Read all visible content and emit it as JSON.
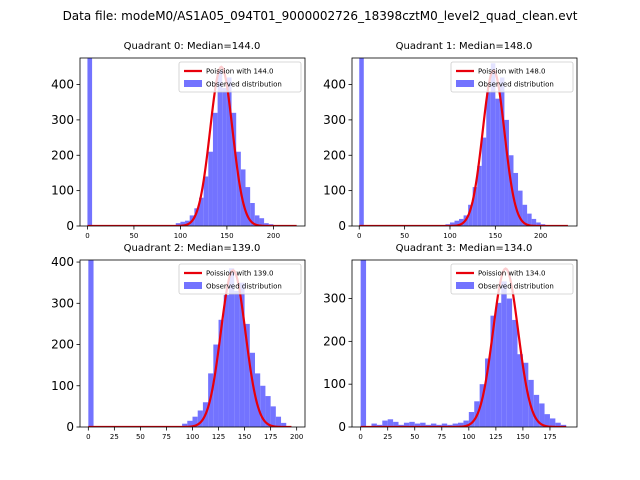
{
  "figure": {
    "suptitle": "Data file: modeM0/AS1A05_094T01_9000002726_18398cztM0_level2_quad_clean.evt"
  },
  "colors": {
    "hist": "#6b6bff",
    "hist_opacity": 0.95,
    "curve": "#e8000b",
    "axes": "#000000"
  },
  "chart_data": [
    {
      "type": "bar",
      "title": "Quadrant 0: Median=144.0",
      "median": 144.0,
      "xlim": [
        -8,
        234
      ],
      "ylim": [
        0,
        475
      ],
      "xticks": [
        0,
        50,
        100,
        150,
        200
      ],
      "yticks": [
        0,
        100,
        200,
        300,
        400
      ],
      "bin_width": 5,
      "legend": [
        "Poission with 144.0",
        "Observed distribution"
      ],
      "curve": {
        "label": "Poission with 144.0",
        "mean": 144.0,
        "peak": 450,
        "sigma": 12.0,
        "x_range": [
          0,
          225
        ]
      },
      "bins": [
        {
          "x": 0,
          "y": 475
        },
        {
          "x": 95,
          "y": 8
        },
        {
          "x": 100,
          "y": 12
        },
        {
          "x": 105,
          "y": 15
        },
        {
          "x": 110,
          "y": 30
        },
        {
          "x": 115,
          "y": 50
        },
        {
          "x": 120,
          "y": 80
        },
        {
          "x": 125,
          "y": 140
        },
        {
          "x": 130,
          "y": 210
        },
        {
          "x": 135,
          "y": 320
        },
        {
          "x": 140,
          "y": 440
        },
        {
          "x": 145,
          "y": 390
        },
        {
          "x": 150,
          "y": 420
        },
        {
          "x": 155,
          "y": 320
        },
        {
          "x": 160,
          "y": 210
        },
        {
          "x": 165,
          "y": 160
        },
        {
          "x": 170,
          "y": 110
        },
        {
          "x": 175,
          "y": 65
        },
        {
          "x": 180,
          "y": 30
        },
        {
          "x": 185,
          "y": 22
        },
        {
          "x": 190,
          "y": 8
        },
        {
          "x": 195,
          "y": 5
        }
      ]
    },
    {
      "type": "bar",
      "title": "Quadrant 1: Median=148.0",
      "median": 148.0,
      "xlim": [
        -8,
        240
      ],
      "ylim": [
        0,
        475
      ],
      "xticks": [
        0,
        50,
        100,
        150,
        200
      ],
      "yticks": [
        0,
        100,
        200,
        300,
        400
      ],
      "bin_width": 5,
      "legend": [
        "Poission with 148.0",
        "Observed distribution"
      ],
      "curve": {
        "label": "Poission with 148.0",
        "mean": 148.0,
        "peak": 440,
        "sigma": 12.0,
        "x_range": [
          0,
          230
        ]
      },
      "bins": [
        {
          "x": 0,
          "y": 475
        },
        {
          "x": 95,
          "y": 5
        },
        {
          "x": 100,
          "y": 10
        },
        {
          "x": 105,
          "y": 15
        },
        {
          "x": 110,
          "y": 20
        },
        {
          "x": 115,
          "y": 30
        },
        {
          "x": 120,
          "y": 60
        },
        {
          "x": 125,
          "y": 110
        },
        {
          "x": 130,
          "y": 170
        },
        {
          "x": 135,
          "y": 250
        },
        {
          "x": 140,
          "y": 380
        },
        {
          "x": 145,
          "y": 460
        },
        {
          "x": 150,
          "y": 360
        },
        {
          "x": 155,
          "y": 420
        },
        {
          "x": 160,
          "y": 300
        },
        {
          "x": 165,
          "y": 200
        },
        {
          "x": 170,
          "y": 150
        },
        {
          "x": 175,
          "y": 100
        },
        {
          "x": 180,
          "y": 60
        },
        {
          "x": 185,
          "y": 35
        },
        {
          "x": 190,
          "y": 20
        },
        {
          "x": 195,
          "y": 10
        },
        {
          "x": 200,
          "y": 5
        }
      ]
    },
    {
      "type": "bar",
      "title": "Quadrant 2: Median=139.0",
      "median": 139.0,
      "xlim": [
        -8,
        208
      ],
      "ylim": [
        0,
        405
      ],
      "xticks": [
        0,
        25,
        50,
        75,
        100,
        125,
        150,
        175,
        200
      ],
      "yticks": [
        0,
        100,
        200,
        300,
        400
      ],
      "bin_width": 5,
      "legend": [
        "Poission with 139.0",
        "Observed distribution"
      ],
      "curve": {
        "label": "Poission with 139.0",
        "mean": 139.0,
        "peak": 380,
        "sigma": 11.8,
        "x_range": [
          0,
          195
        ]
      },
      "bins": [
        {
          "x": 0,
          "y": 405
        },
        {
          "x": 90,
          "y": 8
        },
        {
          "x": 95,
          "y": 15
        },
        {
          "x": 100,
          "y": 25
        },
        {
          "x": 105,
          "y": 40
        },
        {
          "x": 110,
          "y": 60
        },
        {
          "x": 115,
          "y": 130
        },
        {
          "x": 120,
          "y": 200
        },
        {
          "x": 125,
          "y": 260
        },
        {
          "x": 130,
          "y": 320
        },
        {
          "x": 135,
          "y": 385
        },
        {
          "x": 140,
          "y": 330
        },
        {
          "x": 145,
          "y": 350
        },
        {
          "x": 150,
          "y": 250
        },
        {
          "x": 155,
          "y": 180
        },
        {
          "x": 160,
          "y": 130
        },
        {
          "x": 165,
          "y": 100
        },
        {
          "x": 170,
          "y": 75
        },
        {
          "x": 175,
          "y": 50
        },
        {
          "x": 180,
          "y": 25
        },
        {
          "x": 185,
          "y": 10
        }
      ]
    },
    {
      "type": "bar",
      "title": "Quadrant 3: Median=134.0",
      "median": 134.0,
      "xlim": [
        -8,
        200
      ],
      "ylim": [
        0,
        390
      ],
      "xticks": [
        0,
        25,
        50,
        75,
        100,
        125,
        150,
        175
      ],
      "yticks": [
        0,
        100,
        200,
        300
      ],
      "bin_width": 5,
      "legend": [
        "Poission with 134.0",
        "Observed distribution"
      ],
      "curve": {
        "label": "Poission with 134.0",
        "mean": 134.0,
        "peak": 370,
        "sigma": 11.6,
        "x_range": [
          0,
          190
        ]
      },
      "bins": [
        {
          "x": 0,
          "y": 390
        },
        {
          "x": 10,
          "y": 8
        },
        {
          "x": 15,
          "y": 5
        },
        {
          "x": 20,
          "y": 15
        },
        {
          "x": 25,
          "y": 18
        },
        {
          "x": 30,
          "y": 12
        },
        {
          "x": 35,
          "y": 5
        },
        {
          "x": 40,
          "y": 10
        },
        {
          "x": 45,
          "y": 12
        },
        {
          "x": 50,
          "y": 8
        },
        {
          "x": 55,
          "y": 10
        },
        {
          "x": 60,
          "y": 5
        },
        {
          "x": 65,
          "y": 8
        },
        {
          "x": 70,
          "y": 5
        },
        {
          "x": 75,
          "y": 8
        },
        {
          "x": 80,
          "y": 5
        },
        {
          "x": 85,
          "y": 8
        },
        {
          "x": 90,
          "y": 10
        },
        {
          "x": 95,
          "y": 15
        },
        {
          "x": 100,
          "y": 35
        },
        {
          "x": 105,
          "y": 60
        },
        {
          "x": 110,
          "y": 100
        },
        {
          "x": 115,
          "y": 160
        },
        {
          "x": 120,
          "y": 260
        },
        {
          "x": 125,
          "y": 290
        },
        {
          "x": 130,
          "y": 340
        },
        {
          "x": 135,
          "y": 300
        },
        {
          "x": 140,
          "y": 250
        },
        {
          "x": 145,
          "y": 170
        },
        {
          "x": 150,
          "y": 150
        },
        {
          "x": 155,
          "y": 110
        },
        {
          "x": 160,
          "y": 75
        },
        {
          "x": 165,
          "y": 55
        },
        {
          "x": 170,
          "y": 30
        },
        {
          "x": 175,
          "y": 20
        },
        {
          "x": 180,
          "y": 10
        },
        {
          "x": 185,
          "y": 5
        }
      ]
    }
  ]
}
